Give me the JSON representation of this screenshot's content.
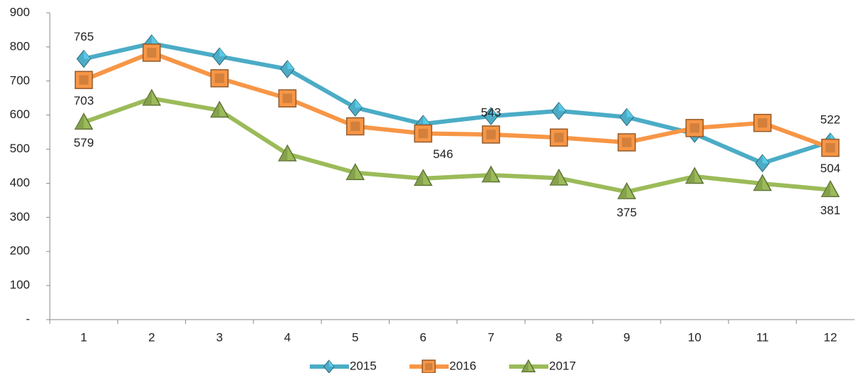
{
  "chart_data": {
    "type": "line",
    "categories": [
      "1",
      "2",
      "3",
      "4",
      "5",
      "6",
      "7",
      "8",
      "9",
      "10",
      "11",
      "12"
    ],
    "series": [
      {
        "name": "2015",
        "color": "#4bacc6",
        "marker": "diamond",
        "values": [
          765,
          810,
          772,
          735,
          622,
          574,
          597,
          612,
          594,
          545,
          459,
          522
        ],
        "value_labels": [
          765,
          null,
          null,
          null,
          null,
          null,
          null,
          null,
          null,
          null,
          null,
          522
        ]
      },
      {
        "name": "2016",
        "color": "#f79646",
        "marker": "square",
        "values": [
          703,
          783,
          708,
          649,
          567,
          546,
          543,
          534,
          520,
          562,
          577,
          504
        ],
        "value_labels": [
          703,
          null,
          null,
          null,
          null,
          546,
          543,
          null,
          null,
          null,
          null,
          504
        ]
      },
      {
        "name": "2017",
        "color": "#9bbb59",
        "marker": "triangle",
        "values": [
          579,
          649,
          614,
          486,
          431,
          414,
          424,
          415,
          375,
          420,
          399,
          381
        ],
        "value_labels": [
          579,
          null,
          null,
          null,
          null,
          null,
          null,
          null,
          375,
          null,
          null,
          381
        ]
      }
    ],
    "ylim": [
      0,
      900
    ],
    "yticks": [
      {
        "value": 0,
        "label": "-"
      },
      100,
      200,
      300,
      400,
      500,
      600,
      700,
      800,
      900
    ],
    "legend": "bottom"
  }
}
